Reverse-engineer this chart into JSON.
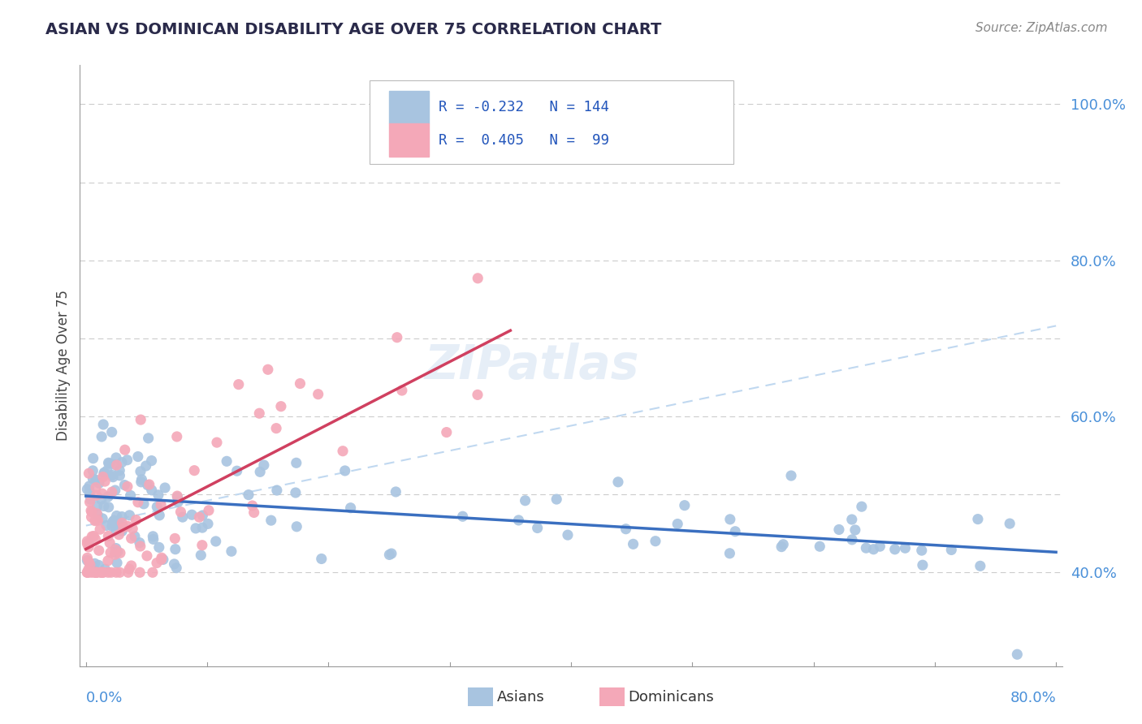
{
  "title": "ASIAN VS DOMINICAN DISABILITY AGE OVER 75 CORRELATION CHART",
  "source": "Source: ZipAtlas.com",
  "ylabel_label": "Disability Age Over 75",
  "asian_color": "#a8c4e0",
  "dominican_color": "#f4a8b8",
  "asian_line_color": "#3a6fc0",
  "dominican_line_color": "#d04060",
  "dashed_line_color": "#c0d8f0",
  "x_min": 0.0,
  "x_max": 0.8,
  "y_min": 0.28,
  "y_max": 1.05,
  "asian_slope": -0.09,
  "asian_intercept": 0.498,
  "dominican_slope": 0.8,
  "dominican_intercept": 0.43,
  "dashed_slope": 0.32,
  "dashed_intercept": 0.46,
  "watermark": "ZIPatlas",
  "legend_r1": "R = -0.232",
  "legend_n1": "N = 144",
  "legend_r2": "R =  0.405",
  "legend_n2": "N =  99",
  "ytick_vals": [
    0.4,
    0.6,
    0.8,
    1.0
  ],
  "ytick_labels": [
    "40.0%",
    "60.0%",
    "80.0%",
    "100.0%"
  ],
  "grid_vals": [
    0.4,
    0.5,
    0.6,
    0.7,
    0.8,
    0.9,
    1.0
  ]
}
